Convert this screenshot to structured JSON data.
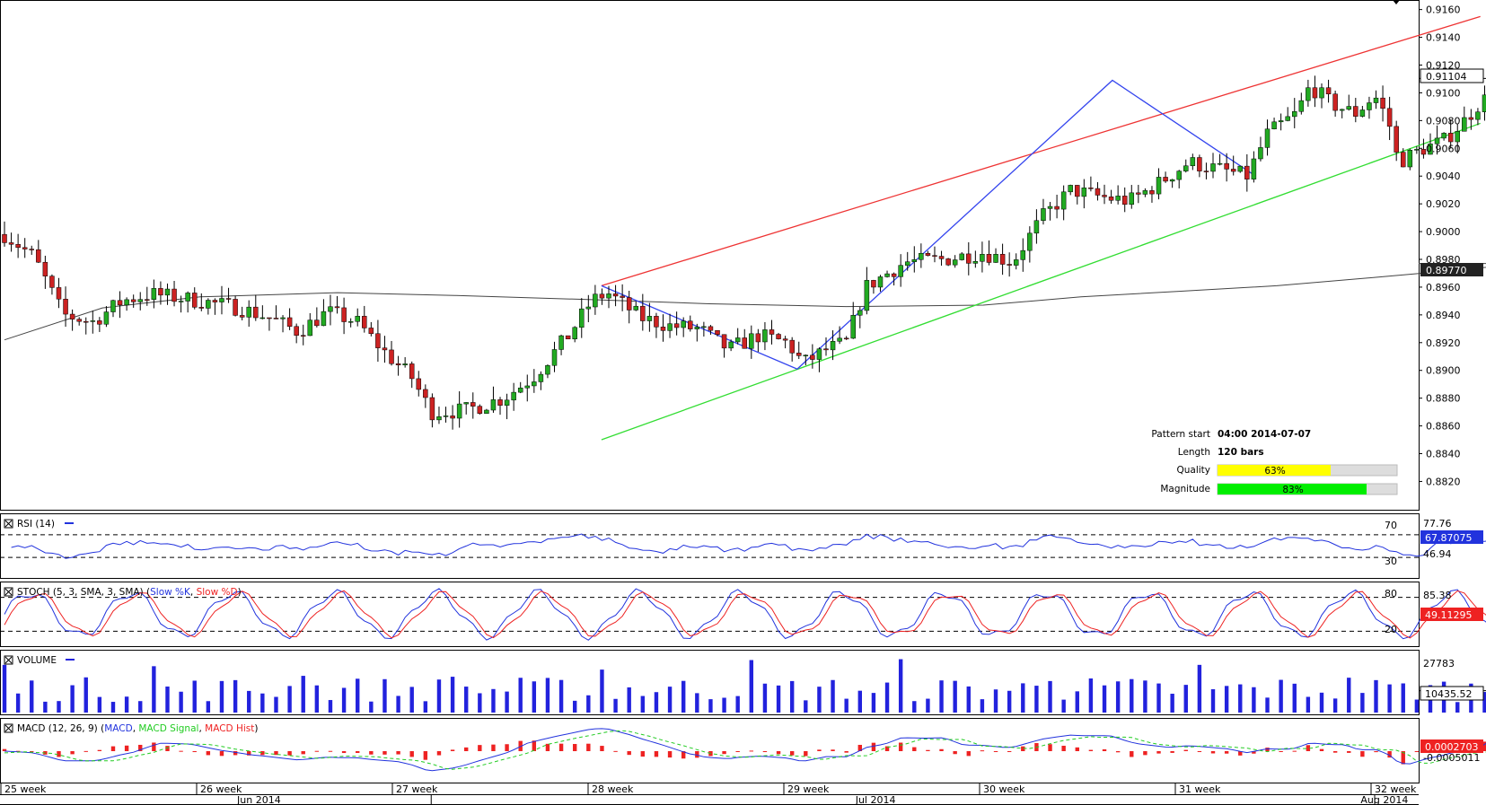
{
  "chart_data": {
    "type": "candlestick",
    "main": {
      "y_ticks": [
        "0.9160",
        "0.9140",
        "0.9120",
        "0.9100",
        "0.9080",
        "0.9060",
        "0.9040",
        "0.9020",
        "0.9000",
        "0.8980",
        "0.8960",
        "0.8940",
        "0.8920",
        "0.8900",
        "0.8880",
        "0.8860",
        "0.8840",
        "0.8820"
      ],
      "ylim": [
        0.8808,
        0.9163
      ],
      "last_price_tag": "0.91104",
      "last_price": 0.91104,
      "ma_tag": "0.89770",
      "ma_last": 0.8977,
      "pattern_start_date": "2014-07-07",
      "resistance_line": {
        "start": [
          28.05,
          0.8961
        ],
        "end": [
          32.54,
          0.9155
        ]
      },
      "support_line": {
        "start": [
          28.05,
          0.885
        ],
        "end": [
          32.54,
          0.9078
        ]
      },
      "zigzag": [
        [
          28.05,
          0.8961
        ],
        [
          29.05,
          0.8901
        ],
        [
          30.66,
          0.9109
        ],
        [
          31.37,
          0.9042
        ]
      ]
    },
    "info": {
      "pattern_start_label": "Pattern start",
      "pattern_start_value": "04:00 2014-07-07",
      "length_label": "Length",
      "length_value": "120 bars",
      "quality_label": "Quality",
      "quality_value": "63%",
      "quality_pct": 63,
      "magnitude_label": "Magnitude",
      "magnitude_value": "83%",
      "magnitude_pct": 83
    },
    "rsi": {
      "title": "RSI (14)",
      "levels": [
        "70",
        "30"
      ],
      "high_tag": "77.76",
      "mid_tag": "46.94",
      "last_tag": "67.87075",
      "last": 67.87
    },
    "stoch": {
      "title_prefix": "STOCH (5, 3, SMA, 3, SMA)",
      "k_label": "Slow %K",
      "d_label": "Slow %D",
      "levels": [
        "80",
        "20"
      ],
      "high_tag": "85.38",
      "last_tag": "49.11295",
      "last": 49.11
    },
    "volume": {
      "title": "VOLUME",
      "max_tag": "27783",
      "last_tag": "10435.52",
      "max": 27783,
      "last": 10435.52
    },
    "macd": {
      "title_prefix": "MACD (12, 26, 9)",
      "macd_label": "MACD",
      "signal_label": "MACD Signal",
      "hist_label": "MACD Hist",
      "last_tag": "0.0002703",
      "low_tag": "-0.0005011"
    },
    "x_weeks": [
      "25 week",
      "26 week",
      "27 week",
      "28 week",
      "29 week",
      "30 week",
      "31 week",
      "32 week"
    ],
    "x_months": [
      "Jun 2014",
      "Jul 2014",
      "Aug 2014"
    ],
    "colors": {
      "bull": "#22aa22",
      "bear": "#cc2222",
      "resistance": "#ee3333",
      "support": "#33dd33",
      "zigzag": "#3344ee",
      "ma": "#444444",
      "rsi": "#2233dd",
      "k": "#2233dd",
      "d": "#ee2222",
      "volume": "#2222dd",
      "macd": "#2233dd",
      "signal": "#22cc22",
      "hist": "#ee2222",
      "quality_fill": "#ffff00",
      "magnitude_fill": "#00ee00"
    }
  }
}
